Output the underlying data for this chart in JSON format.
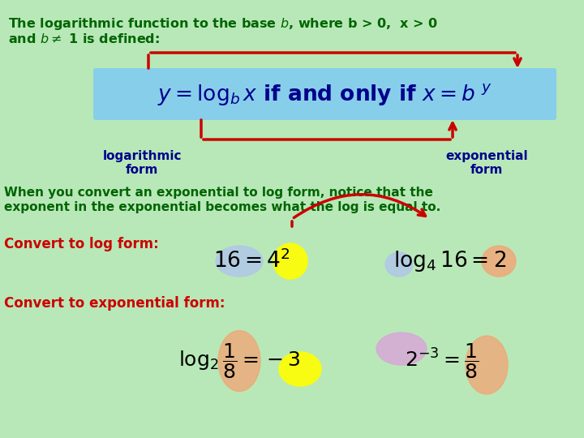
{
  "bg_color": "#b8e8b8",
  "title_line1": "The logarithmic function to the base $b$, where b > 0,  x > 0",
  "title_line2": "and $b \\neq$ 1 is defined:",
  "title_color": "#006400",
  "main_formula": "$y = \\log_b x$ if and only if $x = b^{\\ y}$",
  "formula_bg": "#87ceeb",
  "formula_color": "#00008B",
  "log_label": "logarithmic\nform",
  "exp_label": "exponential\nform",
  "label_color": "#00008B",
  "arrow_color": "#cc0000",
  "convert_text1": "Convert to log form:",
  "convert_text2": "Convert to exponential form:",
  "convert_color": "#cc0000",
  "body_text_line1": "When you convert an exponential to log form, notice that the",
  "body_text_line2": "exponent in the exponential becomes what the log is equal to.",
  "body_color": "#006400",
  "ellipse_blue": "#b0c8e8",
  "ellipse_yellow": "#ffff00",
  "ellipse_salmon": "#f0a878",
  "ellipse_pink": "#d8a8d8"
}
